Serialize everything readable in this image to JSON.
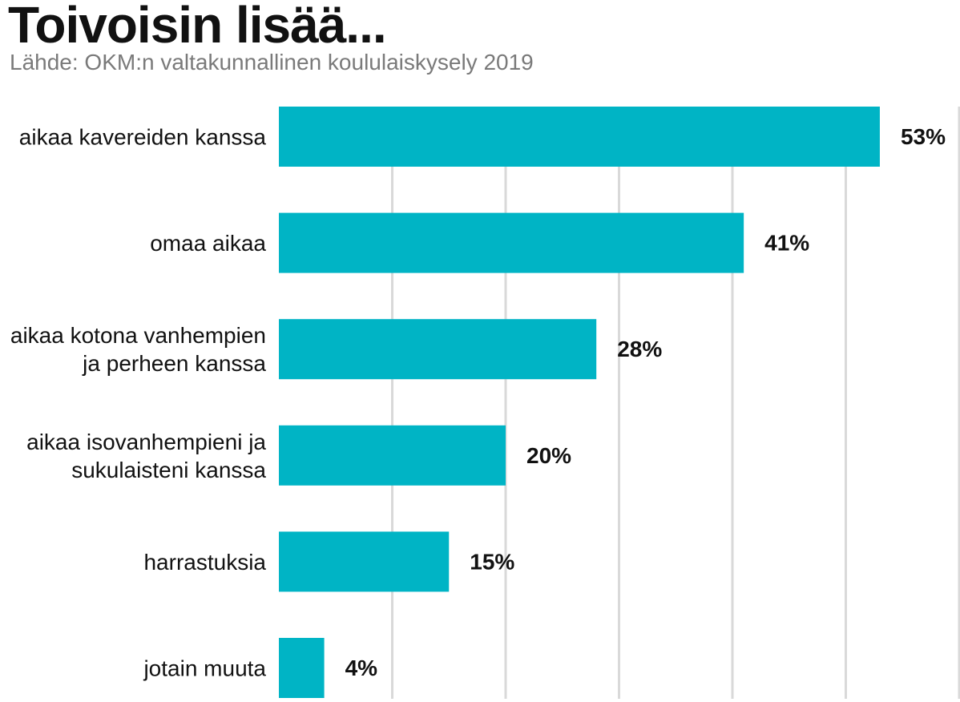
{
  "chart_data": {
    "type": "bar",
    "orientation": "horizontal",
    "title": "Toivoisin lisää...",
    "subtitle": "Lähde: OKM:n valtakunnallinen koululaiskysely 2019",
    "categories": [
      [
        "aikaa kavereiden kanssa"
      ],
      [
        "omaa aikaa"
      ],
      [
        "aikaa kotona vanhempien",
        "ja perheen kanssa"
      ],
      [
        "aikaa isovanhempieni ja",
        "sukulaisteni kanssa"
      ],
      [
        "harrastuksia"
      ],
      [
        "jotain muuta"
      ]
    ],
    "values": [
      53,
      41,
      28,
      20,
      15,
      4
    ],
    "value_labels": [
      "53%",
      "41%",
      "28%",
      "20%",
      "15%",
      "4%"
    ],
    "xlim": [
      0,
      60
    ],
    "grid": true,
    "legend": "none",
    "colors": {
      "bar": "#00b4c5",
      "grid": "#d9d9d9"
    }
  }
}
